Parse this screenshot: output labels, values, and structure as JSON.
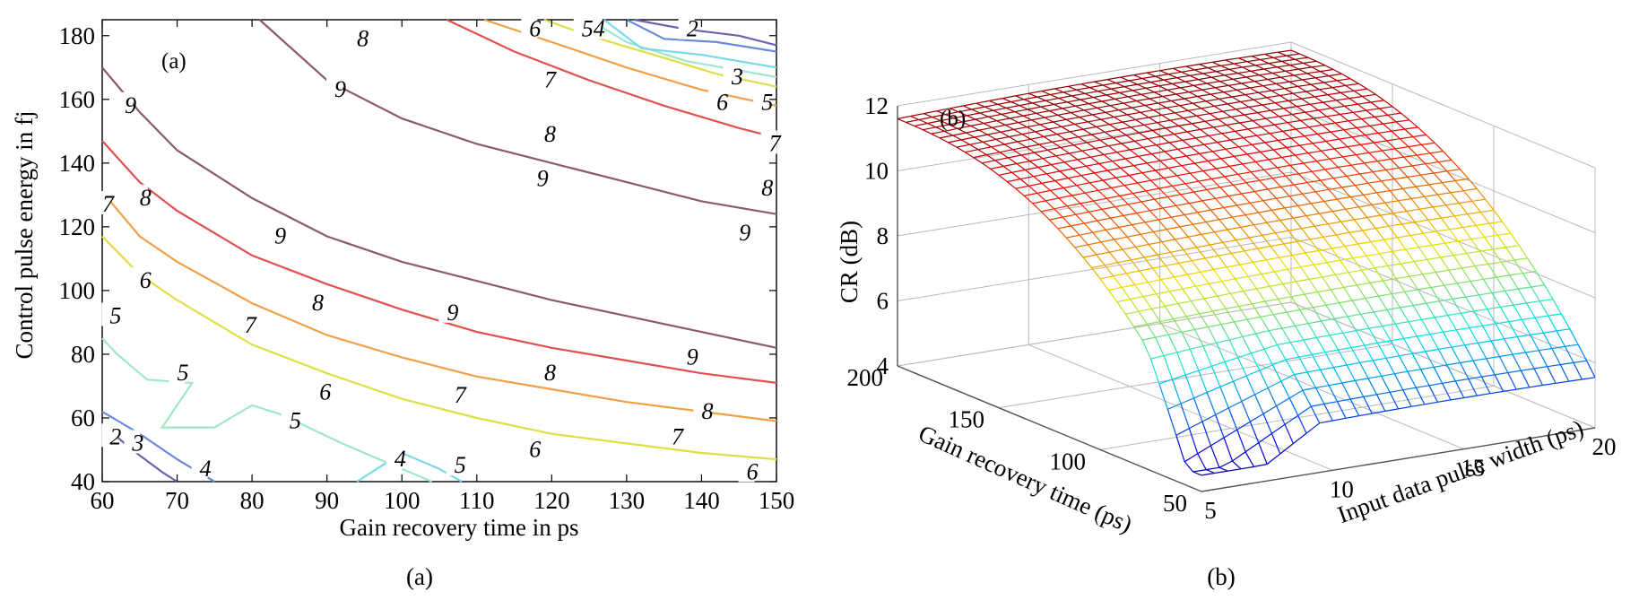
{
  "chart_data": [
    {
      "type": "contour",
      "panel_label": "(a)",
      "caption": "(a)",
      "xlabel": "Gain recovery time in ps",
      "ylabel": "Control pulse energy in fj",
      "xlim": [
        60,
        150
      ],
      "ylim": [
        40,
        185
      ],
      "xticks": [
        60,
        70,
        80,
        90,
        100,
        110,
        120,
        130,
        140,
        150
      ],
      "yticks": [
        40,
        60,
        80,
        100,
        120,
        140,
        160,
        180
      ],
      "grid": false,
      "levels": [
        {
          "level": "9",
          "color": "#8c5a6e",
          "points": [
            [
              81,
              185
            ],
            [
              90,
              166
            ],
            [
              100,
              154
            ],
            [
              110,
              146
            ],
            [
              120,
              140
            ],
            [
              130,
              134
            ],
            [
              140,
              128
            ],
            [
              150,
              124
            ]
          ]
        },
        {
          "level": "9",
          "color": "#8c5a6e",
          "points": [
            [
              60,
              170
            ],
            [
              65,
              156
            ],
            [
              70,
              144
            ],
            [
              80,
              129
            ],
            [
              90,
              117
            ],
            [
              100,
              109
            ],
            [
              110,
              103
            ],
            [
              120,
              97
            ],
            [
              130,
              92
            ],
            [
              140,
              87
            ],
            [
              150,
              82
            ]
          ]
        },
        {
          "level": "8",
          "color": "#e05050",
          "points": [
            [
              106,
              185
            ],
            [
              115,
              175
            ],
            [
              125,
              166
            ],
            [
              135,
              158
            ],
            [
              145,
              151
            ],
            [
              150,
              148
            ]
          ]
        },
        {
          "level": "8",
          "color": "#e05050",
          "points": [
            [
              60,
              147
            ],
            [
              65,
              134
            ],
            [
              70,
              125
            ],
            [
              80,
              111
            ],
            [
              90,
              102
            ],
            [
              100,
              94
            ],
            [
              110,
              87
            ],
            [
              120,
              82
            ],
            [
              130,
              78
            ],
            [
              140,
              74
            ],
            [
              150,
              71
            ]
          ]
        },
        {
          "level": "7",
          "color": "#f2a046",
          "points": [
            [
              60,
              131
            ],
            [
              65,
              117
            ],
            [
              70,
              109
            ],
            [
              80,
              96
            ],
            [
              90,
              86
            ],
            [
              100,
              79
            ],
            [
              110,
              73
            ],
            [
              120,
              69
            ],
            [
              130,
              65
            ],
            [
              140,
              62
            ],
            [
              150,
              59
            ]
          ]
        },
        {
          "level": "7",
          "color": "#f2a046",
          "points": [
            [
              111,
              185
            ],
            [
              120,
              178
            ],
            [
              130,
              170
            ],
            [
              140,
              163
            ],
            [
              150,
              158
            ]
          ]
        },
        {
          "level": "6",
          "color": "#dede46",
          "points": [
            [
              60,
              117
            ],
            [
              65,
              105
            ],
            [
              70,
              97
            ],
            [
              80,
              83
            ],
            [
              90,
              74
            ],
            [
              100,
              66
            ],
            [
              110,
              60
            ],
            [
              120,
              55
            ],
            [
              130,
              52
            ],
            [
              140,
              49
            ],
            [
              150,
              47
            ]
          ]
        },
        {
          "level": "6",
          "color": "#dede46",
          "points": [
            [
              119,
              185
            ],
            [
              125,
              180
            ],
            [
              135,
              173
            ],
            [
              142,
              168
            ],
            [
              150,
              164
            ]
          ]
        },
        {
          "level": "5",
          "color": "#9ee8c8",
          "points": [
            [
              60,
              85
            ],
            [
              62,
              80
            ],
            [
              66,
              72
            ],
            [
              72,
              71
            ],
            [
              68,
              57
            ],
            [
              75,
              57
            ],
            [
              80,
              64
            ],
            [
              84,
              61
            ],
            [
              92,
              52
            ],
            [
              100,
              44
            ],
            [
              104,
              40
            ]
          ]
        },
        {
          "level": "5",
          "color": "#9ee8c8",
          "points": [
            [
              125,
              185
            ],
            [
              130,
              178
            ],
            [
              138,
              172
            ],
            [
              150,
              167
            ]
          ]
        },
        {
          "level": "4",
          "color": "#7ad8e8",
          "points": [
            [
              94,
              40
            ],
            [
              100,
              49
            ],
            [
              105,
              44
            ],
            [
              108,
              40
            ]
          ]
        },
        {
          "level": "4",
          "color": "#7ad8e8",
          "points": [
            [
              127,
              185
            ],
            [
              132,
              176
            ],
            [
              140,
              174
            ],
            [
              150,
              170
            ]
          ]
        },
        {
          "level": "3",
          "color": "#6a8cd8",
          "points": [
            [
              60,
              62
            ],
            [
              65,
              55
            ],
            [
              70,
              47
            ],
            [
              75,
              40
            ]
          ]
        },
        {
          "level": "3",
          "color": "#6a8cd8",
          "points": [
            [
              130,
              185
            ],
            [
              135,
              179
            ],
            [
              142,
              178
            ],
            [
              150,
              175
            ]
          ]
        },
        {
          "level": "2",
          "color": "#7060b0",
          "points": [
            [
              60,
              58
            ],
            [
              64,
              50
            ],
            [
              68,
              43
            ],
            [
              70,
              40
            ]
          ]
        },
        {
          "level": "2",
          "color": "#7060b0",
          "points": [
            [
              131,
              185
            ],
            [
              138,
              182
            ],
            [
              145,
              180
            ],
            [
              150,
              177
            ]
          ]
        }
      ],
      "labels": [
        {
          "text": "8",
          "x": 94,
          "y": 179
        },
        {
          "text": "9",
          "x": 91,
          "y": 163
        },
        {
          "text": "6",
          "x": 117,
          "y": 182
        },
        {
          "text": "54",
          "x": 124,
          "y": 182
        },
        {
          "text": "2",
          "x": 138,
          "y": 182
        },
        {
          "text": "7",
          "x": 119,
          "y": 166
        },
        {
          "text": "3",
          "x": 144,
          "y": 167
        },
        {
          "text": "6",
          "x": 142,
          "y": 159
        },
        {
          "text": "5",
          "x": 148,
          "y": 159
        },
        {
          "text": "8",
          "x": 119,
          "y": 149
        },
        {
          "text": "7",
          "x": 149,
          "y": 146
        },
        {
          "text": "9",
          "x": 118,
          "y": 135
        },
        {
          "text": "8",
          "x": 148,
          "y": 132
        },
        {
          "text": "9",
          "x": 145,
          "y": 118
        },
        {
          "text": "9",
          "x": 63,
          "y": 158
        },
        {
          "text": "8",
          "x": 65,
          "y": 129
        },
        {
          "text": "7",
          "x": 60,
          "y": 127
        },
        {
          "text": "9",
          "x": 83,
          "y": 117
        },
        {
          "text": "6",
          "x": 65,
          "y": 103
        },
        {
          "text": "5",
          "x": 61,
          "y": 92
        },
        {
          "text": "8",
          "x": 88,
          "y": 96
        },
        {
          "text": "9",
          "x": 106,
          "y": 93
        },
        {
          "text": "7",
          "x": 79,
          "y": 89
        },
        {
          "text": "9",
          "x": 138,
          "y": 79
        },
        {
          "text": "8",
          "x": 119,
          "y": 74
        },
        {
          "text": "5",
          "x": 70,
          "y": 74
        },
        {
          "text": "6",
          "x": 89,
          "y": 68
        },
        {
          "text": "7",
          "x": 107,
          "y": 67
        },
        {
          "text": "8",
          "x": 140,
          "y": 62
        },
        {
          "text": "5",
          "x": 85,
          "y": 59
        },
        {
          "text": "2",
          "x": 61,
          "y": 54
        },
        {
          "text": "3",
          "x": 64,
          "y": 52
        },
        {
          "text": "7",
          "x": 136,
          "y": 54
        },
        {
          "text": "6",
          "x": 117,
          "y": 50
        },
        {
          "text": "4",
          "x": 99,
          "y": 47
        },
        {
          "text": "5",
          "x": 107,
          "y": 45
        },
        {
          "text": "4",
          "x": 73,
          "y": 44
        },
        {
          "text": "6",
          "x": 146,
          "y": 43
        }
      ]
    },
    {
      "type": "surface",
      "panel_label": "(b)",
      "caption": "(b)",
      "zlabel": "CR (dB)",
      "xlabel": "Gain recovery time (ps)",
      "ylabel": "Input data pulse width (ps)",
      "zticks": [
        "4",
        "6",
        "8",
        "10",
        "12"
      ],
      "xticks": [
        "50",
        "100",
        "150",
        "200"
      ],
      "yticks": [
        "5",
        "10",
        "15",
        "20"
      ],
      "zlim": [
        4,
        12
      ],
      "xlim": [
        50,
        200
      ],
      "ylim": [
        5,
        20
      ],
      "grid": true,
      "colormap": "jet",
      "cr_min_db": 4.5,
      "cr_max_db": 12
    }
  ]
}
